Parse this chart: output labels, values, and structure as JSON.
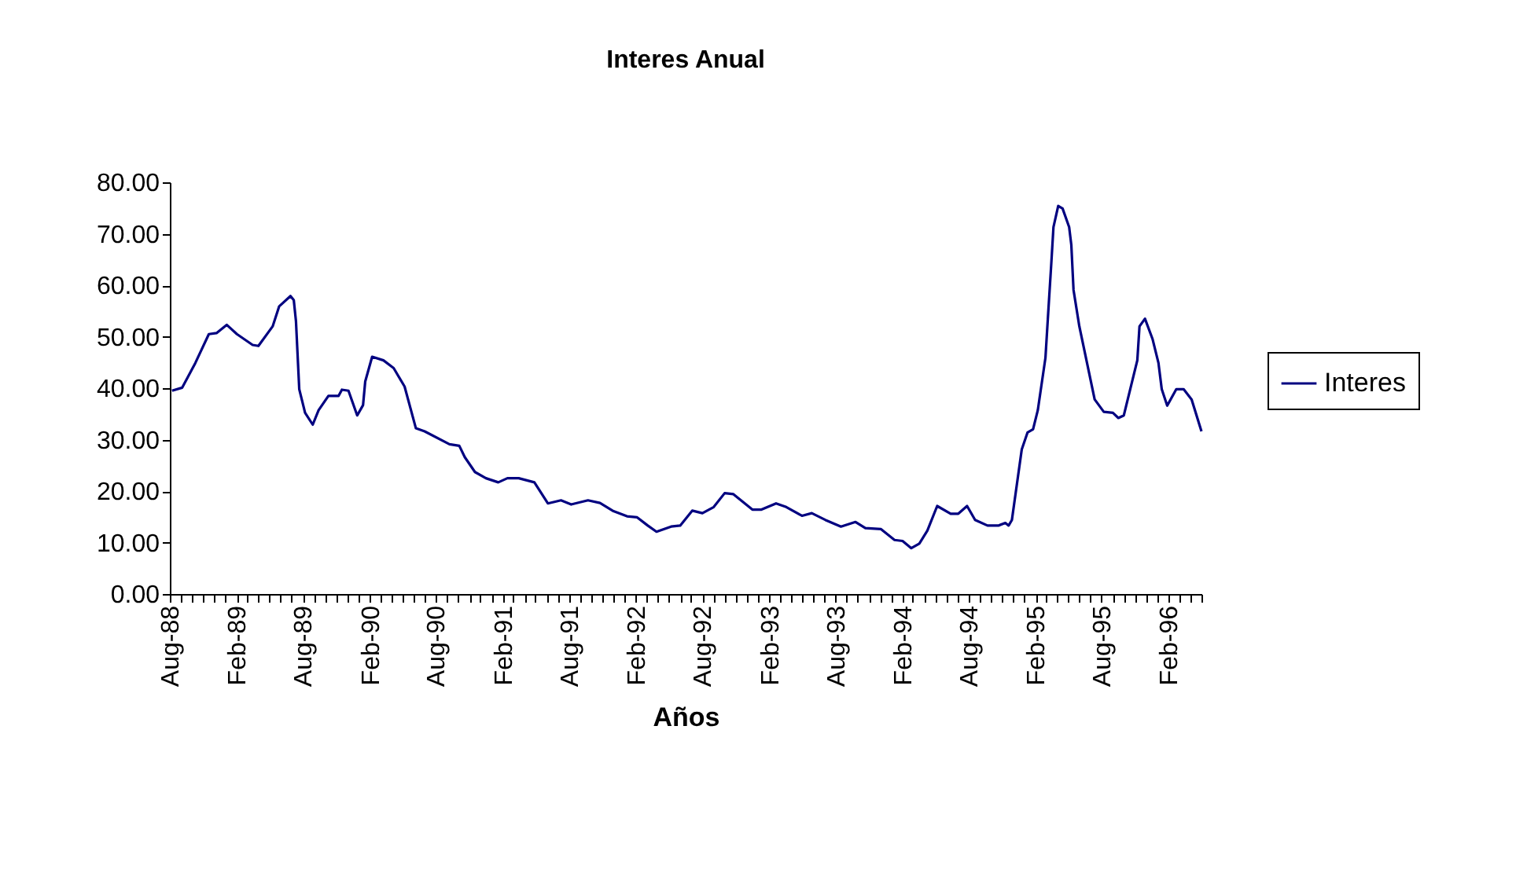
{
  "chart_data": {
    "type": "line",
    "title": "Interes Anual",
    "xlabel": "Años",
    "x": [
      "1988-08-07",
      "1988-09-04",
      "1988-10-10",
      "1988-11-16",
      "1988-12-07",
      "1989-01-04",
      "1989-02-01",
      "1989-03-16",
      "1989-04-01",
      "1989-05-10",
      "1989-05-28",
      "1989-06-28",
      "1989-07-07",
      "1989-07-13",
      "1989-07-22",
      "1989-08-07",
      "1989-08-28",
      "1989-09-13",
      "1989-10-10",
      "1989-11-07",
      "1989-11-16",
      "1989-12-04",
      "1989-12-28",
      "1990-01-13",
      "1990-01-19",
      "1990-02-07",
      "1990-03-10",
      "1990-04-07",
      "1990-05-07",
      "1990-06-07",
      "1990-07-01",
      "1990-09-07",
      "1990-10-04",
      "1990-10-19",
      "1990-11-16",
      "1990-12-16",
      "1991-01-19",
      "1991-02-13",
      "1991-03-16",
      "1991-04-28",
      "1991-06-04",
      "1991-07-10",
      "1991-08-07",
      "1991-09-22",
      "1991-10-25",
      "1991-12-01",
      "1992-01-07",
      "1992-02-04",
      "1992-03-04",
      "1992-03-28",
      "1992-05-07",
      "1992-06-01",
      "1992-07-04",
      "1992-08-01",
      "1992-09-01",
      "1992-10-01",
      "1992-10-25",
      "1992-12-16",
      "1993-01-10",
      "1993-02-19",
      "1993-03-19",
      "1993-05-01",
      "1993-05-28",
      "1993-07-04",
      "1993-08-16",
      "1993-09-25",
      "1993-10-22",
      "1993-12-04",
      "1994-01-10",
      "1994-02-01",
      "1994-02-25",
      "1994-03-19",
      "1994-04-10",
      "1994-05-07",
      "1994-06-13",
      "1994-07-04",
      "1994-07-28",
      "1994-08-19",
      "1994-09-22",
      "1994-10-22",
      "1994-11-10",
      "1994-11-19",
      "1994-11-28",
      "1994-12-25",
      "1995-01-10",
      "1995-01-25",
      "1995-02-07",
      "1995-02-28",
      "1995-03-07",
      "1995-03-16",
      "1995-03-22",
      "1995-04-04",
      "1995-04-16",
      "1995-05-04",
      "1995-05-10",
      "1995-05-16",
      "1995-06-01",
      "1995-06-22",
      "1995-07-13",
      "1995-08-07",
      "1995-09-01",
      "1995-09-16",
      "1995-10-01",
      "1995-10-22",
      "1995-11-07",
      "1995-11-13",
      "1995-11-28",
      "1995-12-19",
      "1996-01-04",
      "1996-01-13",
      "1996-01-28",
      "1996-02-22",
      "1996-03-13",
      "1996-04-04",
      "1996-05-01"
    ],
    "series": [
      {
        "name": "Interes",
        "color": "#000080",
        "values": [
          39.5,
          40.1,
          44.9,
          50.5,
          50.7,
          52.3,
          50.5,
          48.4,
          48.2,
          52.0,
          55.9,
          57.9,
          57.1,
          53.0,
          39.8,
          35.2,
          32.9,
          35.7,
          38.5,
          38.5,
          39.7,
          39.5,
          34.7,
          36.7,
          41.3,
          46.1,
          45.4,
          43.9,
          40.3,
          32.2,
          31.6,
          29.1,
          28.8,
          26.6,
          23.7,
          22.5,
          21.7,
          22.5,
          22.5,
          21.7,
          17.6,
          18.2,
          17.4,
          18.2,
          17.7,
          16.1,
          15.1,
          14.9,
          13.3,
          12.1,
          13.1,
          13.3,
          16.2,
          15.7,
          16.9,
          19.6,
          19.4,
          16.4,
          16.4,
          17.6,
          16.9,
          15.2,
          15.7,
          14.4,
          13.1,
          14.0,
          12.8,
          12.6,
          10.5,
          10.3,
          8.9,
          9.8,
          12.3,
          17.1,
          15.6,
          15.6,
          17.1,
          14.4,
          13.3,
          13.3,
          13.8,
          13.3,
          14.4,
          28.1,
          31.4,
          32.0,
          35.7,
          45.9,
          54.0,
          64.2,
          71.3,
          75.4,
          74.9,
          71.3,
          67.8,
          59.1,
          52.0,
          44.9,
          37.8,
          35.4,
          35.2,
          34.2,
          34.7,
          40.8,
          45.4,
          52.0,
          53.5,
          49.5,
          44.9,
          39.8,
          36.6,
          39.8,
          39.8,
          37.8,
          31.6
        ]
      }
    ],
    "ylim": [
      0,
      80
    ],
    "yticks": [
      {
        "value": 0,
        "label": "0.00"
      },
      {
        "value": 10,
        "label": "10.00"
      },
      {
        "value": 20,
        "label": "20.00"
      },
      {
        "value": 30,
        "label": "30.00"
      },
      {
        "value": 40,
        "label": "40.00"
      },
      {
        "value": 50,
        "label": "50.00"
      },
      {
        "value": 60,
        "label": "60.00"
      },
      {
        "value": 70,
        "label": "70.00"
      },
      {
        "value": 80,
        "label": "80.00"
      }
    ],
    "xlim": [
      "1988-08",
      "1996-05"
    ],
    "xticks": [
      {
        "value": "1988-08",
        "label": "Aug-88"
      },
      {
        "value": "1988-09",
        "label": null
      },
      {
        "value": "1988-10",
        "label": null
      },
      {
        "value": "1988-11",
        "label": null
      },
      {
        "value": "1988-12",
        "label": null
      },
      {
        "value": "1989-01",
        "label": null
      },
      {
        "value": "1989-02",
        "label": "Feb-89"
      },
      {
        "value": "1989-03",
        "label": null
      },
      {
        "value": "1989-04",
        "label": null
      },
      {
        "value": "1989-05",
        "label": null
      },
      {
        "value": "1989-06",
        "label": null
      },
      {
        "value": "1989-07",
        "label": null
      },
      {
        "value": "1989-08",
        "label": "Aug-89"
      },
      {
        "value": "1989-09",
        "label": null
      },
      {
        "value": "1989-10",
        "label": null
      },
      {
        "value": "1989-11",
        "label": null
      },
      {
        "value": "1989-12",
        "label": null
      },
      {
        "value": "1990-01",
        "label": null
      },
      {
        "value": "1990-02",
        "label": "Feb-90"
      },
      {
        "value": "1990-03",
        "label": null
      },
      {
        "value": "1990-04",
        "label": null
      },
      {
        "value": "1990-05",
        "label": null
      },
      {
        "value": "1990-06",
        "label": null
      },
      {
        "value": "1990-07",
        "label": null
      },
      {
        "value": "1990-08",
        "label": "Aug-90"
      },
      {
        "value": "1990-09",
        "label": null
      },
      {
        "value": "1990-10",
        "label": null
      },
      {
        "value": "1990-11",
        "label": null
      },
      {
        "value": "1990-12",
        "label": null
      },
      {
        "value": "1991-01",
        "label": null
      },
      {
        "value": "1991-02",
        "label": "Feb-91"
      },
      {
        "value": "1991-03",
        "label": null
      },
      {
        "value": "1991-04",
        "label": null
      },
      {
        "value": "1991-05",
        "label": null
      },
      {
        "value": "1991-06",
        "label": null
      },
      {
        "value": "1991-07",
        "label": null
      },
      {
        "value": "1991-08",
        "label": "Aug-91"
      },
      {
        "value": "1991-09",
        "label": null
      },
      {
        "value": "1991-10",
        "label": null
      },
      {
        "value": "1991-11",
        "label": null
      },
      {
        "value": "1991-12",
        "label": null
      },
      {
        "value": "1992-01",
        "label": null
      },
      {
        "value": "1992-02",
        "label": "Feb-92"
      },
      {
        "value": "1992-03",
        "label": null
      },
      {
        "value": "1992-04",
        "label": null
      },
      {
        "value": "1992-05",
        "label": null
      },
      {
        "value": "1992-06",
        "label": null
      },
      {
        "value": "1992-07",
        "label": null
      },
      {
        "value": "1992-08",
        "label": "Aug-92"
      },
      {
        "value": "1992-09",
        "label": null
      },
      {
        "value": "1992-10",
        "label": null
      },
      {
        "value": "1992-11",
        "label": null
      },
      {
        "value": "1992-12",
        "label": null
      },
      {
        "value": "1993-01",
        "label": null
      },
      {
        "value": "1993-02",
        "label": "Feb-93"
      },
      {
        "value": "1993-03",
        "label": null
      },
      {
        "value": "1993-04",
        "label": null
      },
      {
        "value": "1993-05",
        "label": null
      },
      {
        "value": "1993-06",
        "label": null
      },
      {
        "value": "1993-07",
        "label": null
      },
      {
        "value": "1993-08",
        "label": "Aug-93"
      },
      {
        "value": "1993-09",
        "label": null
      },
      {
        "value": "1993-10",
        "label": null
      },
      {
        "value": "1993-11",
        "label": null
      },
      {
        "value": "1993-12",
        "label": null
      },
      {
        "value": "1994-01",
        "label": null
      },
      {
        "value": "1994-02",
        "label": "Feb-94"
      },
      {
        "value": "1994-03",
        "label": null
      },
      {
        "value": "1994-04",
        "label": null
      },
      {
        "value": "1994-05",
        "label": null
      },
      {
        "value": "1994-06",
        "label": null
      },
      {
        "value": "1994-07",
        "label": null
      },
      {
        "value": "1994-08",
        "label": "Aug-94"
      },
      {
        "value": "1994-09",
        "label": null
      },
      {
        "value": "1994-10",
        "label": null
      },
      {
        "value": "1994-11",
        "label": null
      },
      {
        "value": "1994-12",
        "label": null
      },
      {
        "value": "1995-01",
        "label": null
      },
      {
        "value": "1995-02",
        "label": "Feb-95"
      },
      {
        "value": "1995-03",
        "label": null
      },
      {
        "value": "1995-04",
        "label": null
      },
      {
        "value": "1995-05",
        "label": null
      },
      {
        "value": "1995-06",
        "label": null
      },
      {
        "value": "1995-07",
        "label": null
      },
      {
        "value": "1995-08",
        "label": "Aug-95"
      },
      {
        "value": "1995-09",
        "label": null
      },
      {
        "value": "1995-10",
        "label": null
      },
      {
        "value": "1995-11",
        "label": null
      },
      {
        "value": "1995-12",
        "label": null
      },
      {
        "value": "1996-01",
        "label": null
      },
      {
        "value": "1996-02",
        "label": "Feb-96"
      },
      {
        "value": "1996-03",
        "label": null
      },
      {
        "value": "1996-04",
        "label": null
      },
      {
        "value": "1996-05",
        "label": null
      }
    ],
    "grid": false,
    "legend": "right",
    "marker": "none",
    "line_style": "solid"
  }
}
